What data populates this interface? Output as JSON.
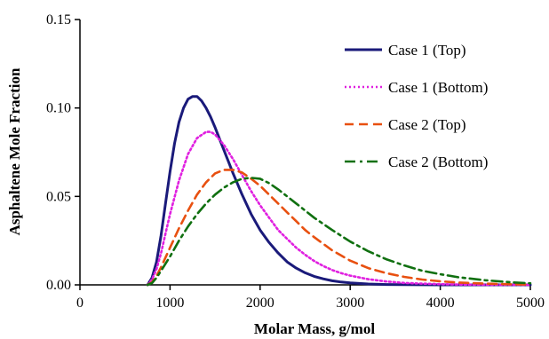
{
  "chart_data": {
    "type": "line",
    "title": "",
    "xlabel": "Molar Mass, g/mol",
    "ylabel": "Asphaltene Mole Fraction",
    "xlim": [
      0,
      5000
    ],
    "ylim": [
      0,
      0.15
    ],
    "x_ticks": [
      0,
      1000,
      2000,
      3000,
      4000,
      5000
    ],
    "x_tick_labels": [
      "0",
      "1000",
      "2000",
      "3000",
      "4000",
      "5000"
    ],
    "y_ticks": [
      0,
      0.05,
      0.1,
      0.15
    ],
    "y_tick_labels": [
      "0.00",
      "0.05",
      "0.10",
      "0.15"
    ],
    "grid": false,
    "legend_position": "top-right",
    "series": [
      {
        "name": "Case 1 (Top)",
        "color": "#1a1a7a",
        "dash": "solid",
        "x": [
          750,
          800,
          850,
          900,
          950,
          1000,
          1050,
          1100,
          1150,
          1200,
          1250,
          1300,
          1350,
          1400,
          1450,
          1500,
          1600,
          1700,
          1800,
          1900,
          2000,
          2100,
          2200,
          2300,
          2400,
          2500,
          2600,
          2700,
          2800,
          2900,
          3000,
          3200,
          3400,
          3600,
          3800,
          4000,
          4500,
          5000
        ],
        "y": [
          0,
          0.004,
          0.013,
          0.028,
          0.046,
          0.064,
          0.08,
          0.092,
          0.1,
          0.105,
          0.1065,
          0.1065,
          0.104,
          0.1,
          0.095,
          0.089,
          0.076,
          0.063,
          0.051,
          0.04,
          0.031,
          0.024,
          0.018,
          0.013,
          0.0095,
          0.0068,
          0.0048,
          0.0034,
          0.0023,
          0.0016,
          0.0011,
          0.0005,
          0.0002,
          0.0001,
          5e-05,
          0,
          0,
          0
        ]
      },
      {
        "name": "Case 1 (Bottom)",
        "color": "#e020e0",
        "dash": "dotted",
        "x": [
          750,
          800,
          850,
          900,
          950,
          1000,
          1100,
          1200,
          1300,
          1400,
          1450,
          1500,
          1600,
          1700,
          1800,
          1900,
          2000,
          2100,
          2200,
          2300,
          2400,
          2500,
          2600,
          2700,
          2800,
          2900,
          3000,
          3200,
          3400,
          3600,
          3800,
          4000,
          4200,
          4500,
          5000
        ],
        "y": [
          0,
          0.003,
          0.009,
          0.018,
          0.029,
          0.04,
          0.059,
          0.074,
          0.083,
          0.0865,
          0.0865,
          0.085,
          0.079,
          0.071,
          0.062,
          0.053,
          0.045,
          0.038,
          0.031,
          0.026,
          0.021,
          0.017,
          0.0135,
          0.0107,
          0.0084,
          0.0066,
          0.0052,
          0.0032,
          0.0019,
          0.0011,
          0.0007,
          0.0004,
          0.0002,
          5e-05,
          0
        ]
      },
      {
        "name": "Case 2 (Top)",
        "color": "#e85010",
        "dash": "dashed",
        "x": [
          750,
          800,
          850,
          900,
          1000,
          1100,
          1200,
          1300,
          1400,
          1500,
          1600,
          1700,
          1800,
          1900,
          2000,
          2100,
          2200,
          2300,
          2400,
          2500,
          2600,
          2800,
          3000,
          3200,
          3400,
          3600,
          3800,
          4000,
          4200,
          4500,
          4800,
          5000
        ],
        "y": [
          0,
          0.0015,
          0.005,
          0.01,
          0.021,
          0.032,
          0.042,
          0.051,
          0.058,
          0.063,
          0.065,
          0.065,
          0.0635,
          0.06,
          0.056,
          0.051,
          0.046,
          0.041,
          0.036,
          0.031,
          0.027,
          0.0195,
          0.0137,
          0.0095,
          0.0066,
          0.0045,
          0.003,
          0.002,
          0.0013,
          0.0007,
          0.0003,
          0.0002
        ]
      },
      {
        "name": "Case 2 (Bottom)",
        "color": "#107010",
        "dash": "dashdot",
        "x": [
          750,
          800,
          850,
          900,
          1000,
          1100,
          1200,
          1300,
          1400,
          1500,
          1600,
          1700,
          1800,
          1900,
          2000,
          2100,
          2200,
          2300,
          2400,
          2500,
          2600,
          2800,
          3000,
          3200,
          3400,
          3600,
          3800,
          4000,
          4200,
          4500,
          4800,
          5000
        ],
        "y": [
          0,
          0.001,
          0.004,
          0.008,
          0.016,
          0.025,
          0.033,
          0.04,
          0.046,
          0.051,
          0.055,
          0.058,
          0.06,
          0.0605,
          0.06,
          0.0575,
          0.054,
          0.05,
          0.046,
          0.042,
          0.038,
          0.031,
          0.0245,
          0.019,
          0.0145,
          0.011,
          0.008,
          0.006,
          0.0043,
          0.0026,
          0.0014,
          0.0009
        ]
      }
    ]
  }
}
